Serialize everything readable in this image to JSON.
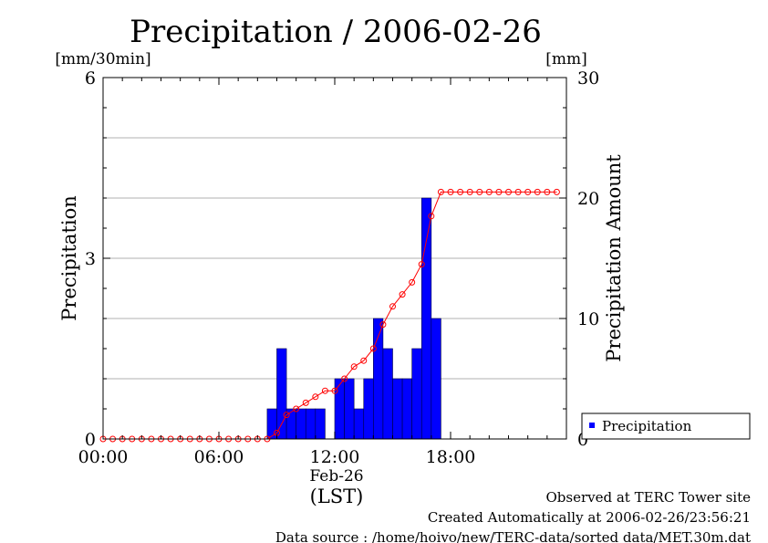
{
  "chart_data": {
    "type": "bar",
    "title": "Precipitation / 2006-02-26",
    "y_left": {
      "unit": "[mm/30min]",
      "label": "Precipitation",
      "range": [
        0,
        6
      ],
      "ticks": [
        "0",
        "3",
        "6"
      ],
      "tick_values": [
        0,
        3,
        6
      ],
      "minor_grid_values": [
        1,
        2,
        4,
        5
      ]
    },
    "y_right": {
      "unit": "[mm]",
      "label": "Precipitation Amount",
      "range": [
        0,
        30
      ],
      "ticks": [
        "0",
        "10",
        "20",
        "30"
      ],
      "tick_values": [
        0,
        10,
        20,
        30
      ]
    },
    "x_axis": {
      "range_hours": [
        0,
        24
      ],
      "ticks": [
        "00:00",
        "06:00",
        "12:00",
        "18:00"
      ],
      "tick_hours": [
        0,
        6,
        12,
        18
      ],
      "date_label": "Feb-26",
      "timezone_label": "(LST)"
    },
    "grid": true,
    "legend": {
      "position": "bottom-right",
      "entries": [
        "Precipitation"
      ]
    },
    "bar_color": "#0000ff",
    "line_color": "#ff0000",
    "series": [
      {
        "name": "Precipitation",
        "kind": "bar",
        "axis": "left",
        "x_start_hours": [
          8.5,
          9.0,
          9.5,
          10.0,
          10.5,
          11.0,
          11.5,
          12.0,
          12.5,
          13.0,
          13.5,
          14.0,
          14.5,
          15.0,
          15.5,
          16.0,
          16.5,
          17.0
        ],
        "values": [
          0.5,
          1.5,
          0.5,
          0.5,
          0.5,
          0.5,
          0,
          1.0,
          1.0,
          0.5,
          1.0,
          2.0,
          1.5,
          1.0,
          1.0,
          1.5,
          4.0,
          2.0
        ]
      },
      {
        "kind": "line",
        "axis": "right",
        "x_hours": [
          0,
          0.5,
          1,
          1.5,
          2,
          2.5,
          3,
          3.5,
          4,
          4.5,
          5,
          5.5,
          6,
          6.5,
          7,
          7.5,
          8,
          8.5,
          9,
          9.5,
          10,
          10.5,
          11,
          11.5,
          12,
          12.5,
          13,
          13.5,
          14,
          14.5,
          15,
          15.5,
          16,
          16.5,
          17,
          17.5,
          18,
          18.5,
          19,
          19.5,
          20,
          20.5,
          21,
          21.5,
          22,
          22.5,
          23,
          23.5
        ],
        "values": [
          0,
          0,
          0,
          0,
          0,
          0,
          0,
          0,
          0,
          0,
          0,
          0,
          0,
          0,
          0,
          0,
          0,
          0,
          0.5,
          2.0,
          2.5,
          3.0,
          3.5,
          4.0,
          4.0,
          5.0,
          6.0,
          6.5,
          7.5,
          9.5,
          11.0,
          12.0,
          13.0,
          14.5,
          18.5,
          20.5,
          20.5,
          20.5,
          20.5,
          20.5,
          20.5,
          20.5,
          20.5,
          20.5,
          20.5,
          20.5,
          20.5,
          20.5
        ]
      }
    ]
  },
  "footer": {
    "observed": "Observed at TERC Tower site",
    "created": "Created Automatically at 2006-02-26/23:56:21",
    "source": "Data source : /home/hoivo/new/TERC-data/sorted  data/MET.30m.dat"
  }
}
